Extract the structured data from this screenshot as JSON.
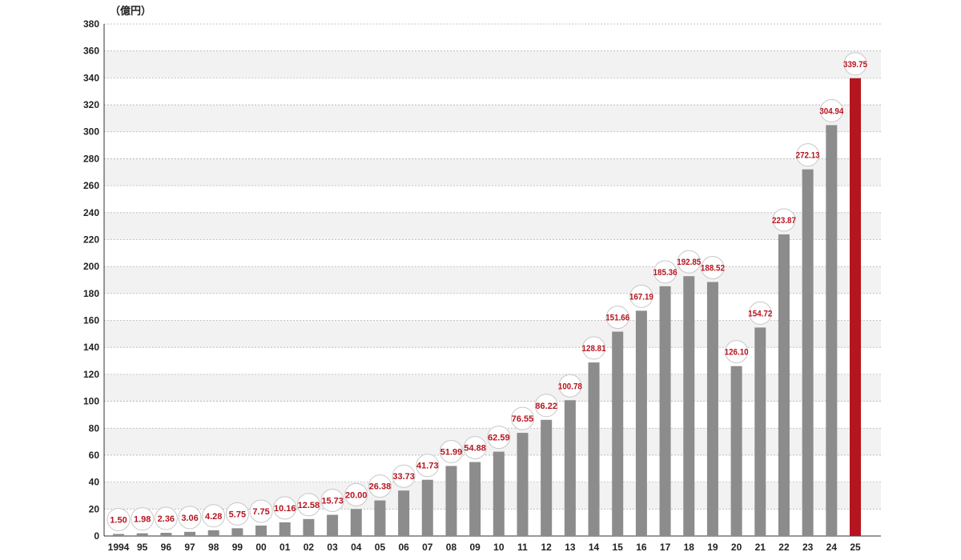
{
  "chart_data": {
    "type": "bar",
    "unit_label": "（億円）",
    "categories": [
      "1994",
      "95",
      "96",
      "97",
      "98",
      "99",
      "00",
      "01",
      "02",
      "03",
      "04",
      "05",
      "06",
      "07",
      "08",
      "09",
      "10",
      "11",
      "12",
      "13",
      "14",
      "15",
      "16",
      "17",
      "18",
      "19",
      "20",
      "21",
      "22",
      "23",
      "24",
      "25"
    ],
    "values": [
      1.5,
      1.98,
      2.36,
      3.06,
      4.28,
      5.75,
      7.75,
      10.16,
      12.58,
      15.73,
      20.0,
      26.38,
      33.73,
      41.73,
      51.99,
      54.88,
      62.59,
      76.55,
      86.22,
      100.78,
      128.81,
      151.66,
      167.19,
      185.36,
      192.85,
      188.52,
      126.1,
      154.72,
      223.87,
      272.13,
      304.94,
      339.75
    ],
    "value_labels": [
      "1.50",
      "1.98",
      "2.36",
      "3.06",
      "4.28",
      "5.75",
      "7.75",
      "10.16",
      "12.58",
      "15.73",
      "20.00",
      "26.38",
      "33.73",
      "41.73",
      "51.99",
      "54.88",
      "62.59",
      "76.55",
      "86.22",
      "100.78",
      "128.81",
      "151.66",
      "167.19",
      "185.36",
      "192.85",
      "188.52",
      "126.10",
      "154.72",
      "223.87",
      "272.13",
      "304.94",
      "339.75"
    ],
    "highlight_index": 31,
    "ylim": [
      0,
      380
    ],
    "yticks": [
      0,
      20,
      40,
      60,
      80,
      100,
      120,
      140,
      160,
      180,
      200,
      220,
      240,
      260,
      280,
      300,
      320,
      340,
      360,
      380
    ],
    "colors": {
      "bar": "#8c8c8c",
      "highlight": "#b5151f",
      "label": "#b5151f",
      "band": "#f2f2f2",
      "grid": "#b3b3b3"
    }
  }
}
